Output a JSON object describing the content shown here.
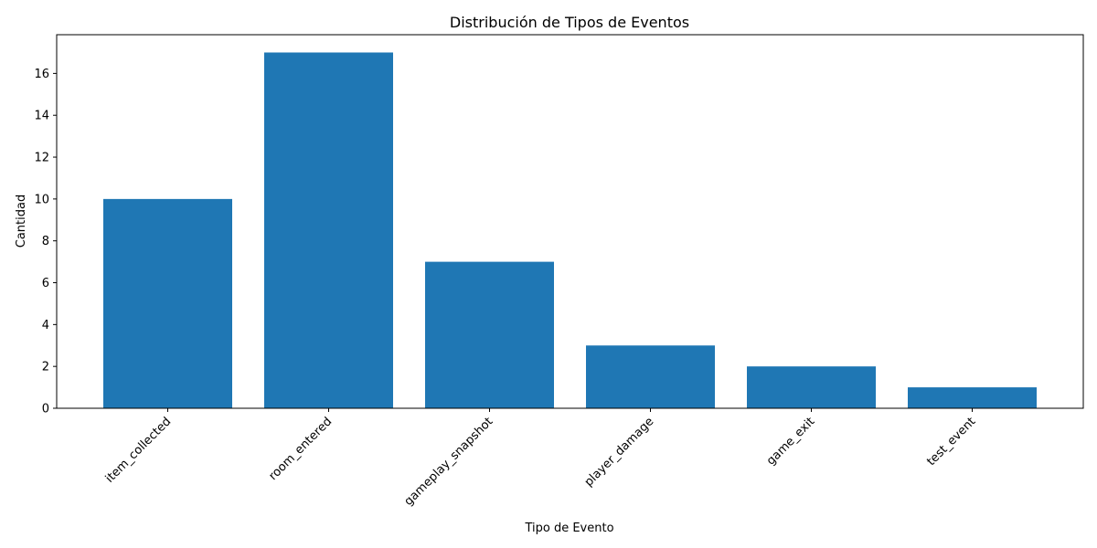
{
  "chart_data": {
    "type": "bar",
    "title": "Distribución de Tipos de Eventos",
    "xlabel": "Tipo de Evento",
    "ylabel": "Cantidad",
    "categories": [
      "item_collected",
      "room_entered",
      "gameplay_snapshot",
      "player_damage",
      "game_exit",
      "test_event"
    ],
    "values": [
      10,
      17,
      7,
      3,
      2,
      1
    ],
    "ylim": [
      0,
      17.85
    ],
    "yticks": [
      0,
      2,
      4,
      6,
      8,
      10,
      12,
      14,
      16
    ],
    "bar_color": "#1f77b4",
    "grid": false,
    "legend": "none"
  }
}
